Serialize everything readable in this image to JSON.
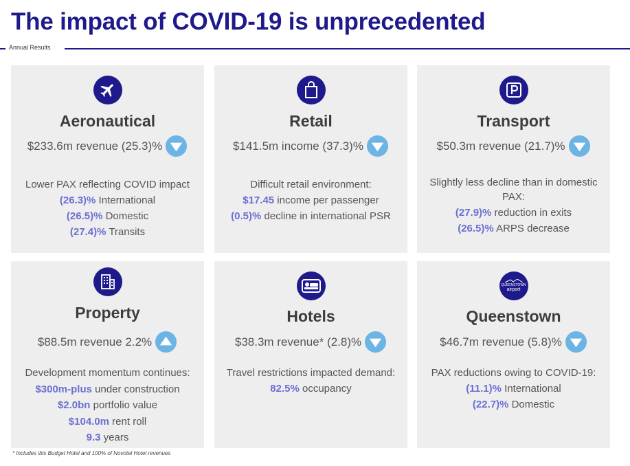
{
  "header": {
    "title": "The impact of COVID-19 is unprecedented",
    "section_label": "Annual Results"
  },
  "cards": {
    "aeronautical": {
      "icon": "airplane-icon",
      "title": "Aeronautical",
      "metric": "$233.6m revenue (25.3)%",
      "trend": "down",
      "lines": [
        {
          "hl": "",
          "text": "Lower PAX reflecting COVID impact"
        },
        {
          "hl": "(26.3)%",
          "text": " International"
        },
        {
          "hl": "(26.5)%",
          "text": " Domestic"
        },
        {
          "hl": "(27.4)%",
          "text": " Transits"
        }
      ]
    },
    "retail": {
      "icon": "shopping-bag-icon",
      "title": "Retail",
      "metric": "$141.5m income (37.3)%",
      "trend": "down",
      "lines": [
        {
          "hl": "",
          "text": "Difficult retail environment:"
        },
        {
          "hl": "$17.45",
          "text": " income per passenger"
        },
        {
          "hl": "(0.5)%",
          "text": " decline in international PSR"
        }
      ]
    },
    "transport": {
      "icon": "parking-icon",
      "title": "Transport",
      "metric": "$50.3m revenue (21.7)%",
      "trend": "down",
      "lines": [
        {
          "hl": "",
          "text": "Slightly less decline than in domestic PAX:"
        },
        {
          "hl": "(27.9)%",
          "text": " reduction in exits"
        },
        {
          "hl": "(26.5)%",
          "text": " ARPS decrease"
        }
      ]
    },
    "property": {
      "icon": "building-icon",
      "title": "Property",
      "metric": "$88.5m revenue 2.2%",
      "trend": "up",
      "lines": [
        {
          "hl": "",
          "text": "Development momentum continues:"
        },
        {
          "hl": "$300m-plus",
          "text": " under construction"
        },
        {
          "hl": "$2.0bn",
          "text": " portfolio value"
        },
        {
          "hl": "$104.0m",
          "text": " rent roll"
        },
        {
          "hl": "9.3",
          "text": " years"
        }
      ]
    },
    "hotels": {
      "icon": "bed-icon",
      "title": "Hotels",
      "metric": "$38.3m revenue* (2.8)%",
      "trend": "down",
      "lines": [
        {
          "hl": "",
          "text": "Travel restrictions impacted demand:"
        },
        {
          "hl": "82.5%",
          "text": " occupancy"
        }
      ]
    },
    "queenstown": {
      "icon": "queenstown-airport-logo-icon",
      "logo_text_1": "QUEENSTOWN",
      "logo_text_2": "airport",
      "title": "Queenstown",
      "metric": "$46.7m revenue (5.8)%",
      "trend": "down",
      "lines": [
        {
          "hl": "",
          "text": "PAX reductions owing to COVID-19:"
        },
        {
          "hl": "(11.1)%",
          "text": " International"
        },
        {
          "hl": "(22.7)%",
          "text": " Domestic"
        }
      ]
    }
  },
  "footnote": "* Includes ibis Budget Hotel and 100% of Novotel Hotel revenues",
  "colors": {
    "brand_navy": "#1f1a8c",
    "highlight": "#6a6fd2",
    "trend_arrow": "#6cb4e4",
    "card_bg": "#eeeeee"
  }
}
